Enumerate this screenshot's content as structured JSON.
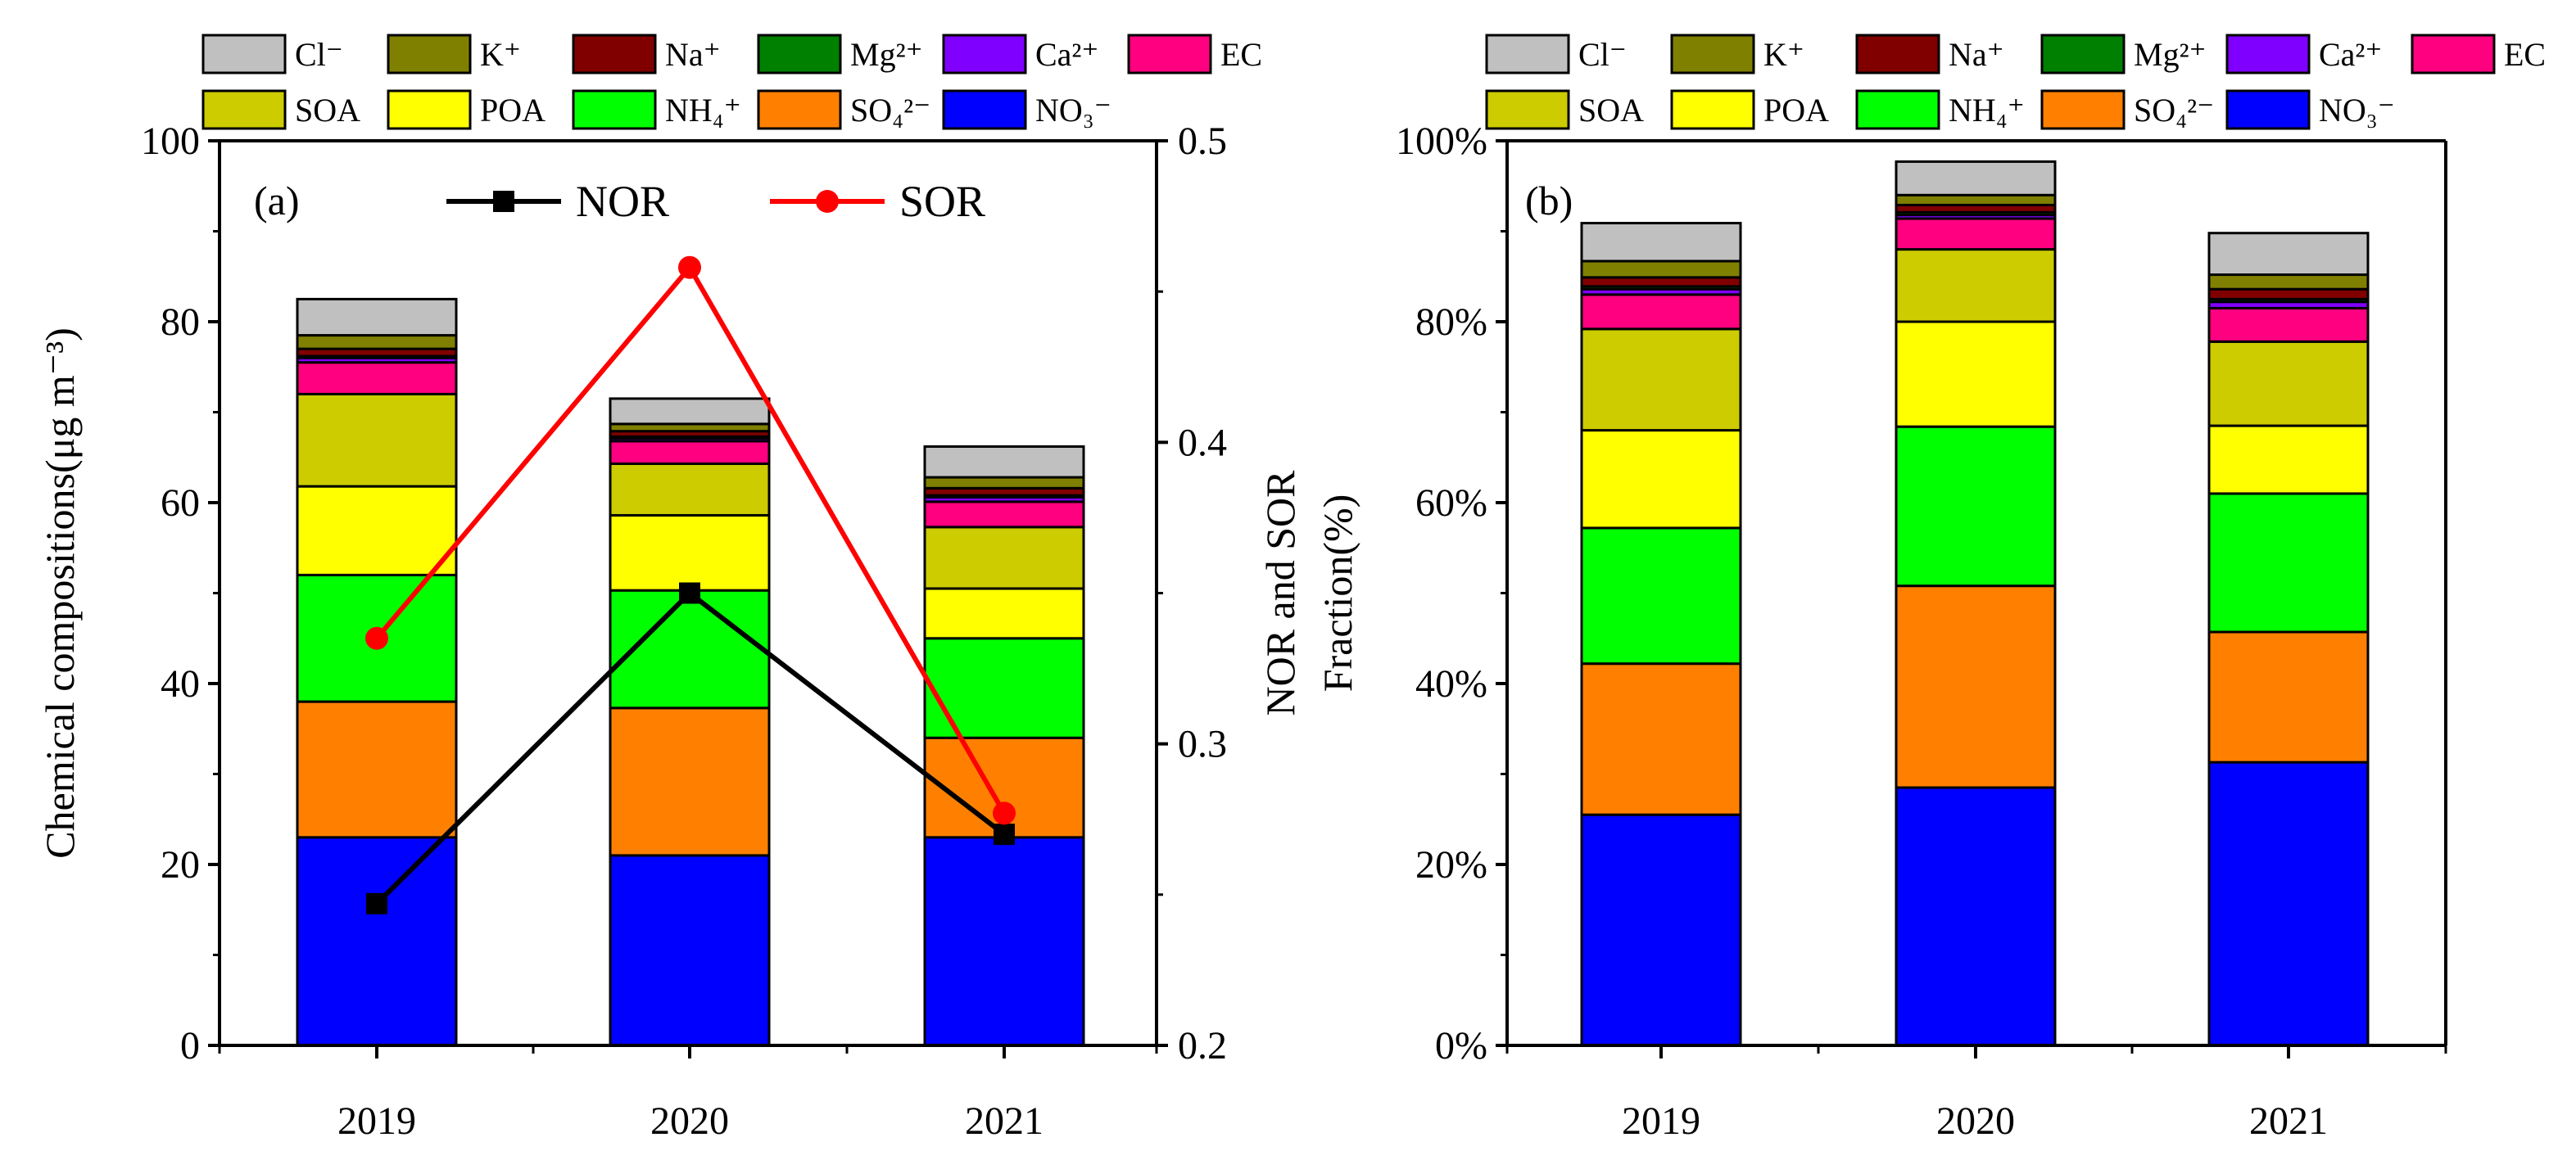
{
  "chart_data": [
    {
      "panel": "a",
      "panel_label": "(a)",
      "type": "bar",
      "stacked": true,
      "categories": [
        "2019",
        "2020",
        "2021"
      ],
      "ylabel": "Chemical compositions(μg m⁻³)",
      "ylim": [
        0,
        100
      ],
      "yticks": [
        "0",
        "20",
        "40",
        "60",
        "80",
        "100"
      ],
      "y2label": "NOR and SOR",
      "y2lim": [
        0.2,
        0.5
      ],
      "y2ticks": [
        "0.2",
        "0.3",
        "0.4",
        "0.5"
      ],
      "series": [
        {
          "name": "NO₃⁻",
          "color": "#0000ff",
          "values": [
            23.0,
            21.0,
            23.0
          ]
        },
        {
          "name": "SO₄²⁻",
          "color": "#ff8000",
          "values": [
            15.0,
            16.3,
            11.0
          ]
        },
        {
          "name": "NH₄⁺",
          "color": "#00ff00",
          "values": [
            14.0,
            13.0,
            11.0
          ]
        },
        {
          "name": "POA",
          "color": "#ffff00",
          "values": [
            9.8,
            8.3,
            5.5
          ]
        },
        {
          "name": "SOA",
          "color": "#cccc00",
          "values": [
            10.2,
            5.7,
            6.8
          ]
        },
        {
          "name": "EC",
          "color": "#ff0080",
          "values": [
            3.5,
            2.5,
            2.8
          ]
        },
        {
          "name": "Ca²⁺",
          "color": "#8000ff",
          "values": [
            0.5,
            0.3,
            0.5
          ]
        },
        {
          "name": "Mg²⁺",
          "color": "#008000",
          "values": [
            0.2,
            0.2,
            0.2
          ]
        },
        {
          "name": "Na⁺",
          "color": "#800000",
          "values": [
            0.8,
            0.6,
            0.8
          ]
        },
        {
          "name": "K⁺",
          "color": "#808000",
          "values": [
            1.5,
            0.8,
            1.2
          ]
        },
        {
          "name": "Cl⁻",
          "color": "#c0c0c0",
          "values": [
            4.0,
            2.8,
            3.4
          ]
        }
      ],
      "lines": [
        {
          "name": "NOR",
          "color": "#000000",
          "marker": "square",
          "values": [
            0.247,
            0.35,
            0.27
          ]
        },
        {
          "name": "SOR",
          "color": "#ff0000",
          "marker": "circle",
          "values": [
            0.335,
            0.458,
            0.277
          ]
        }
      ],
      "legend": [
        "Cl⁻",
        "K⁺",
        "Na⁺",
        "Mg²⁺",
        "Ca²⁺",
        "EC",
        "SOA",
        "POA",
        "NH₄⁺",
        "SO₄²⁻",
        "NO₃⁻"
      ]
    },
    {
      "panel": "b",
      "panel_label": "(b)",
      "type": "bar",
      "stacked": true,
      "categories": [
        "2019",
        "2020",
        "2021"
      ],
      "ylabel": "Fraction(%)",
      "ylim": [
        0,
        100
      ],
      "yticks": [
        "0%",
        "20%",
        "40%",
        "60%",
        "80%",
        "100%"
      ],
      "series": [
        {
          "name": "NO₃⁻",
          "color": "#0000ff",
          "values": [
            25.5,
            28.5,
            31.3
          ]
        },
        {
          "name": "SO₄²⁻",
          "color": "#ff8000",
          "values": [
            16.7,
            22.3,
            14.4
          ]
        },
        {
          "name": "NH₄⁺",
          "color": "#00ff00",
          "values": [
            15.0,
            17.6,
            15.3
          ]
        },
        {
          "name": "POA",
          "color": "#ffff00",
          "values": [
            10.8,
            11.6,
            7.5
          ]
        },
        {
          "name": "SOA",
          "color": "#cccc00",
          "values": [
            11.2,
            8.0,
            9.3
          ]
        },
        {
          "name": "EC",
          "color": "#ff0080",
          "values": [
            3.8,
            3.4,
            3.7
          ]
        },
        {
          "name": "Ca²⁺",
          "color": "#8000ff",
          "values": [
            0.6,
            0.4,
            0.7
          ]
        },
        {
          "name": "Mg²⁺",
          "color": "#008000",
          "values": [
            0.3,
            0.3,
            0.3
          ]
        },
        {
          "name": "Na⁺",
          "color": "#800000",
          "values": [
            1.0,
            0.8,
            1.1
          ]
        },
        {
          "name": "K⁺",
          "color": "#808000",
          "values": [
            1.8,
            1.1,
            1.6
          ]
        },
        {
          "name": "Cl⁻",
          "color": "#c0c0c0",
          "values": [
            4.2,
            3.7,
            4.6
          ]
        }
      ],
      "legend": [
        "Cl⁻",
        "K⁺",
        "Na⁺",
        "Mg²⁺",
        "Ca²⁺",
        "EC",
        "SOA",
        "POA",
        "NH₄⁺",
        "SO₄²⁻",
        "NO₃⁻"
      ]
    }
  ]
}
